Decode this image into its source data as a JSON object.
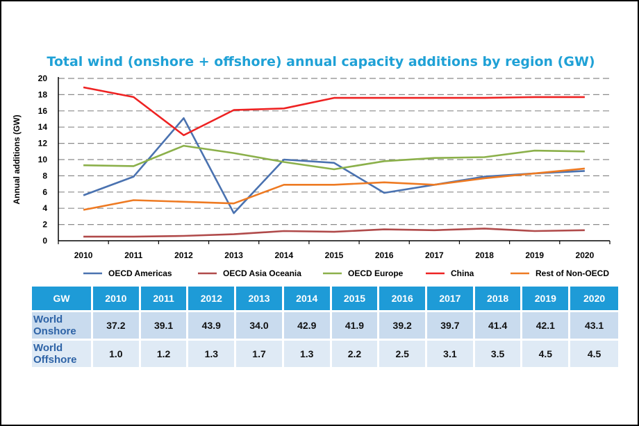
{
  "chart_data": {
    "type": "line",
    "title": "Total wind (onshore + offshore) annual capacity additions by region (GW)",
    "ylabel": "Annual additions (GW)",
    "xlabel": "",
    "x": [
      "2010",
      "2011",
      "2012",
      "2013",
      "2014",
      "2015",
      "2016",
      "2017",
      "2018",
      "2019",
      "2020"
    ],
    "ylim": [
      0,
      20
    ],
    "yticks": [
      0,
      2,
      4,
      6,
      8,
      10,
      12,
      14,
      16,
      18,
      20
    ],
    "grid": "horizontal dashed",
    "legend_position": "bottom",
    "series": [
      {
        "name": "OECD Americas",
        "color": "#4a72b0",
        "values": [
          5.6,
          7.9,
          15.1,
          3.4,
          10.0,
          9.6,
          5.9,
          6.9,
          7.9,
          8.3,
          8.6
        ]
      },
      {
        "name": "OECD Asia Oceania",
        "color": "#b04a4a",
        "values": [
          0.5,
          0.5,
          0.6,
          0.8,
          1.2,
          1.1,
          1.4,
          1.3,
          1.5,
          1.2,
          1.3
        ]
      },
      {
        "name": "OECD Europe",
        "color": "#8bb04a",
        "values": [
          9.3,
          9.2,
          11.7,
          10.8,
          9.7,
          8.8,
          9.8,
          10.2,
          10.3,
          11.1,
          11.0
        ]
      },
      {
        "name": "China",
        "color": "#ee2222",
        "values": [
          18.9,
          17.7,
          13.0,
          16.1,
          16.3,
          17.6,
          17.6,
          17.6,
          17.6,
          17.7,
          17.7
        ]
      },
      {
        "name": "Rest of Non-OECD",
        "color": "#ee7a22",
        "values": [
          3.8,
          5.0,
          4.8,
          4.6,
          6.9,
          6.9,
          7.2,
          6.9,
          7.7,
          8.3,
          8.9
        ]
      }
    ]
  },
  "table": {
    "corner": "GW",
    "years": [
      "2010",
      "2011",
      "2012",
      "2013",
      "2014",
      "2015",
      "2016",
      "2017",
      "2018",
      "2019",
      "2020"
    ],
    "rows": [
      {
        "label_line1": "World",
        "label_line2": "Onshore",
        "values": [
          "37.2",
          "39.1",
          "43.9",
          "34.0",
          "42.9",
          "41.9",
          "39.2",
          "39.7",
          "41.4",
          "42.1",
          "43.1"
        ]
      },
      {
        "label_line1": "World",
        "label_line2": "Offshore",
        "values": [
          "1.0",
          "1.2",
          "1.3",
          "1.7",
          "1.3",
          "2.2",
          "2.5",
          "3.1",
          "3.5",
          "4.5",
          "4.5"
        ]
      }
    ]
  }
}
